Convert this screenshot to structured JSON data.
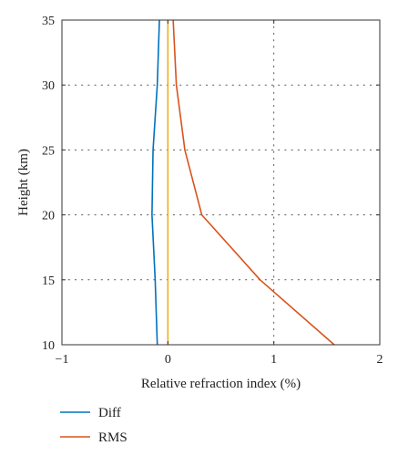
{
  "chart_data": {
    "type": "line",
    "xlabel": "Relative refraction index (%)",
    "ylabel": "Height (km)",
    "xlim": [
      -1,
      2
    ],
    "ylim": [
      10,
      35
    ],
    "xticks": [
      -1,
      0,
      1,
      2
    ],
    "yticks": [
      10,
      15,
      20,
      25,
      30,
      35
    ],
    "grid": true,
    "legend_position": "bottom-left, below plot",
    "reference_line": {
      "x": 0,
      "color": "#EDB120"
    },
    "series": [
      {
        "name": "Diff",
        "color": "#0072BD",
        "points": [
          {
            "x": -0.1,
            "y": 10
          },
          {
            "x": -0.12,
            "y": 15
          },
          {
            "x": -0.15,
            "y": 20
          },
          {
            "x": -0.14,
            "y": 25
          },
          {
            "x": -0.1,
            "y": 30
          },
          {
            "x": -0.08,
            "y": 35
          }
        ]
      },
      {
        "name": "RMS",
        "color": "#D95319",
        "points": [
          {
            "x": 1.57,
            "y": 10
          },
          {
            "x": 0.87,
            "y": 15
          },
          {
            "x": 0.32,
            "y": 20
          },
          {
            "x": 0.16,
            "y": 25
          },
          {
            "x": 0.08,
            "y": 30
          },
          {
            "x": 0.05,
            "y": 35
          }
        ]
      }
    ]
  }
}
